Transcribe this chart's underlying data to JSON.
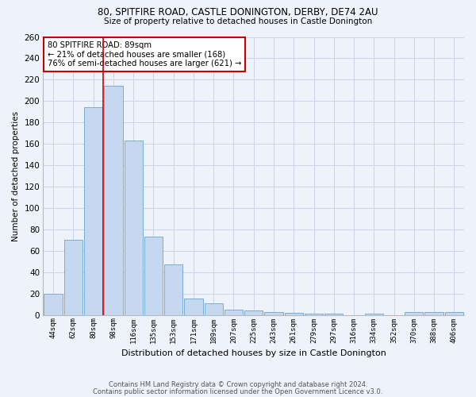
{
  "title1": "80, SPITFIRE ROAD, CASTLE DONINGTON, DERBY, DE74 2AU",
  "title2": "Size of property relative to detached houses in Castle Donington",
  "xlabel": "Distribution of detached houses by size in Castle Donington",
  "ylabel": "Number of detached properties",
  "footer1": "Contains HM Land Registry data © Crown copyright and database right 2024.",
  "footer2": "Contains public sector information licensed under the Open Government Licence v3.0.",
  "categories": [
    "44sqm",
    "62sqm",
    "80sqm",
    "98sqm",
    "116sqm",
    "135sqm",
    "153sqm",
    "171sqm",
    "189sqm",
    "207sqm",
    "225sqm",
    "243sqm",
    "261sqm",
    "279sqm",
    "297sqm",
    "316sqm",
    "334sqm",
    "352sqm",
    "370sqm",
    "388sqm",
    "406sqm"
  ],
  "values": [
    20,
    70,
    194,
    214,
    163,
    73,
    47,
    15,
    11,
    5,
    4,
    3,
    2,
    1,
    1,
    0,
    1,
    0,
    3,
    3,
    3
  ],
  "bar_color": "#c5d8f0",
  "bar_edge_color": "#7aadd4",
  "grid_color": "#c8d4e8",
  "background_color": "#eef2fa",
  "vline_color": "#cc0000",
  "annotation_text": "80 SPITFIRE ROAD: 89sqm\n← 21% of detached houses are smaller (168)\n76% of semi-detached houses are larger (621) →",
  "annotation_box_color": "#ffffff",
  "annotation_box_edge": "#cc0000",
  "ylim": [
    0,
    260
  ],
  "yticks": [
    0,
    20,
    40,
    60,
    80,
    100,
    120,
    140,
    160,
    180,
    200,
    220,
    240,
    260
  ]
}
